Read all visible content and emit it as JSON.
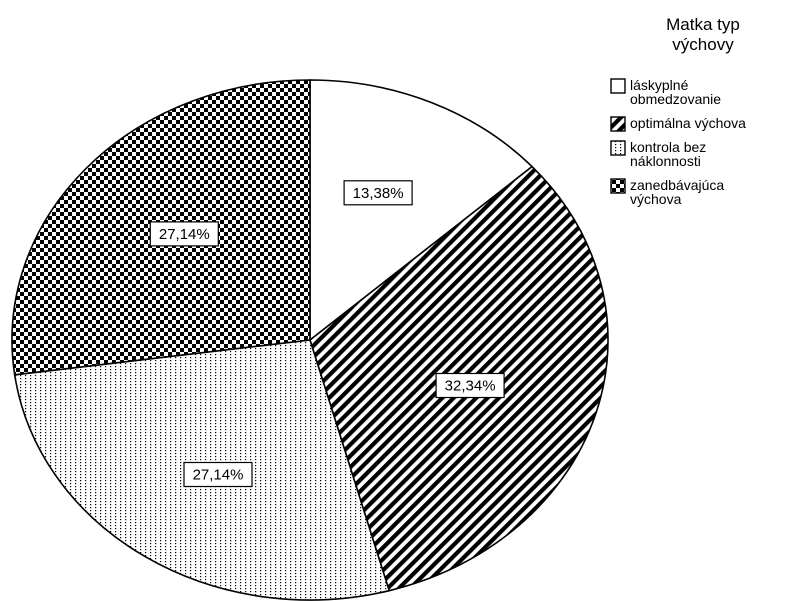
{
  "chart_data": {
    "type": "pie",
    "legend_title": [
      "Matka typ",
      "výchovy"
    ],
    "legend_position": "top-right",
    "start_angle_deg": 0,
    "direction": "clockwise",
    "slices": [
      {
        "name": [
          "láskyplné",
          "obmedzovanie"
        ],
        "value": 13.38,
        "label": "13,38%",
        "pattern": "blank"
      },
      {
        "name": [
          "optimálna výchova"
        ],
        "value": 32.34,
        "label": "32,34%",
        "pattern": "diagonal-stripes"
      },
      {
        "name": [
          "kontrola bez",
          "náklonnosti"
        ],
        "value": 27.14,
        "label": "27,14%",
        "pattern": "dotted"
      },
      {
        "name": [
          "zanedbávajúca",
          "výchova"
        ],
        "value": 27.14,
        "label": "27,14%",
        "pattern": "checkerboard"
      }
    ],
    "colors": {
      "fill": "#ffffff",
      "ink": "#000000"
    }
  }
}
